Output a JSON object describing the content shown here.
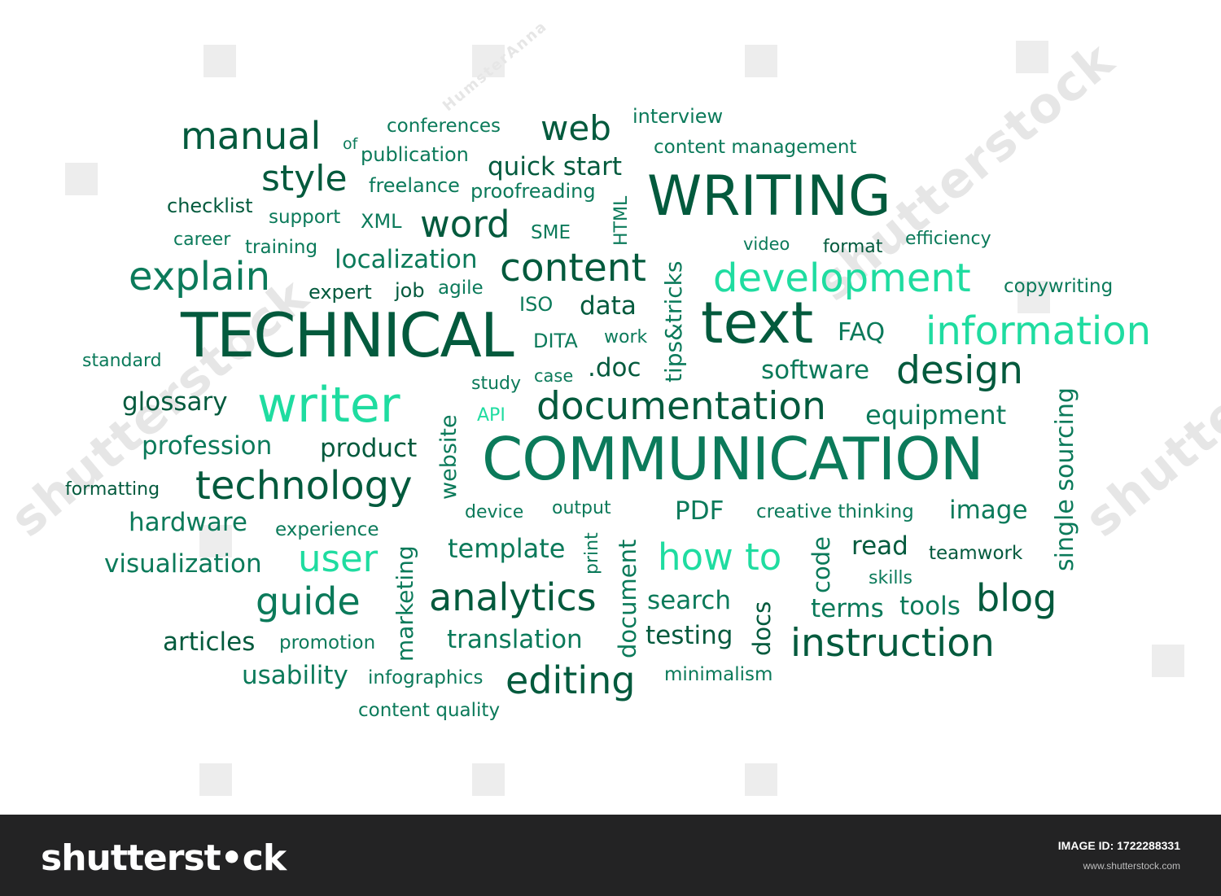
{
  "palette": {
    "dark": "#035a3d",
    "mid": "#0b7a5a",
    "bright": "#1fdca0",
    "medium": "#0a9b6e"
  },
  "words": [
    {
      "text": "manual",
      "color": "dark"
    },
    {
      "text": "of",
      "color": "mid"
    },
    {
      "text": "conferences",
      "color": "mid"
    },
    {
      "text": "web",
      "color": "dark"
    },
    {
      "text": "interview",
      "color": "mid"
    },
    {
      "text": "publication",
      "color": "mid"
    },
    {
      "text": "content management",
      "color": "mid"
    },
    {
      "text": "style",
      "color": "dark"
    },
    {
      "text": "freelance",
      "color": "mid"
    },
    {
      "text": "quick start",
      "color": "dark"
    },
    {
      "text": "WRITING",
      "color": "dark"
    },
    {
      "text": "proofreading",
      "color": "mid"
    },
    {
      "text": "checklist",
      "color": "dark"
    },
    {
      "text": "support",
      "color": "mid"
    },
    {
      "text": "XML",
      "color": "mid"
    },
    {
      "text": "word",
      "color": "dark"
    },
    {
      "text": "SME",
      "color": "mid"
    },
    {
      "text": "HTML",
      "color": "mid"
    },
    {
      "text": "career",
      "color": "mid"
    },
    {
      "text": "training",
      "color": "mid"
    },
    {
      "text": "video",
      "color": "mid"
    },
    {
      "text": "format",
      "color": "dark"
    },
    {
      "text": "efficiency",
      "color": "mid"
    },
    {
      "text": "localization",
      "color": "mid"
    },
    {
      "text": "tips&tricks",
      "color": "mid"
    },
    {
      "text": "explain",
      "color": "mid"
    },
    {
      "text": "content",
      "color": "dark"
    },
    {
      "text": "development",
      "color": "bright"
    },
    {
      "text": "copywriting",
      "color": "mid"
    },
    {
      "text": "expert",
      "color": "dark"
    },
    {
      "text": "job",
      "color": "dark"
    },
    {
      "text": "agile",
      "color": "mid"
    },
    {
      "text": "ISO",
      "color": "mid"
    },
    {
      "text": "data",
      "color": "dark"
    },
    {
      "text": "TECHNICAL",
      "color": "dark"
    },
    {
      "text": "text",
      "color": "dark"
    },
    {
      "text": "FAQ",
      "color": "mid"
    },
    {
      "text": "information",
      "color": "bright"
    },
    {
      "text": "DITA",
      "color": "mid"
    },
    {
      "text": "work",
      "color": "mid"
    },
    {
      "text": "standard",
      "color": "mid"
    },
    {
      "text": ".doc",
      "color": "dark"
    },
    {
      "text": "software",
      "color": "mid"
    },
    {
      "text": "design",
      "color": "dark"
    },
    {
      "text": "study",
      "color": "mid"
    },
    {
      "text": "case",
      "color": "mid"
    },
    {
      "text": "single sourcing",
      "color": "mid"
    },
    {
      "text": "glossary",
      "color": "dark"
    },
    {
      "text": "writer",
      "color": "bright"
    },
    {
      "text": "website",
      "color": "mid"
    },
    {
      "text": "API",
      "color": "bright"
    },
    {
      "text": "documentation",
      "color": "dark"
    },
    {
      "text": "equipment",
      "color": "mid"
    },
    {
      "text": "profession",
      "color": "mid"
    },
    {
      "text": "product",
      "color": "dark"
    },
    {
      "text": "COMMUNICATION",
      "color": "mid"
    },
    {
      "text": "formatting",
      "color": "dark"
    },
    {
      "text": "technology",
      "color": "dark"
    },
    {
      "text": "device",
      "color": "mid"
    },
    {
      "text": "output",
      "color": "mid"
    },
    {
      "text": "PDF",
      "color": "mid"
    },
    {
      "text": "creative thinking",
      "color": "mid"
    },
    {
      "text": "image",
      "color": "mid"
    },
    {
      "text": "hardware",
      "color": "mid"
    },
    {
      "text": "experience",
      "color": "mid"
    },
    {
      "text": "marketing",
      "color": "mid"
    },
    {
      "text": "print",
      "color": "mid"
    },
    {
      "text": "document",
      "color": "mid"
    },
    {
      "text": "code",
      "color": "mid"
    },
    {
      "text": "read",
      "color": "dark"
    },
    {
      "text": "teamwork",
      "color": "dark"
    },
    {
      "text": "visualization",
      "color": "mid"
    },
    {
      "text": "user",
      "color": "bright"
    },
    {
      "text": "template",
      "color": "mid"
    },
    {
      "text": "how to",
      "color": "bright"
    },
    {
      "text": "skills",
      "color": "mid"
    },
    {
      "text": "guide",
      "color": "mid"
    },
    {
      "text": "analytics",
      "color": "dark"
    },
    {
      "text": "search",
      "color": "mid"
    },
    {
      "text": "docs",
      "color": "dark"
    },
    {
      "text": "terms",
      "color": "mid"
    },
    {
      "text": "tools",
      "color": "mid"
    },
    {
      "text": "blog",
      "color": "dark"
    },
    {
      "text": "articles",
      "color": "dark"
    },
    {
      "text": "promotion",
      "color": "mid"
    },
    {
      "text": "translation",
      "color": "mid"
    },
    {
      "text": "testing",
      "color": "dark"
    },
    {
      "text": "instruction",
      "color": "dark"
    },
    {
      "text": "usability",
      "color": "mid"
    },
    {
      "text": "infographics",
      "color": "mid"
    },
    {
      "text": "editing",
      "color": "dark"
    },
    {
      "text": "minimalism",
      "color": "mid"
    },
    {
      "text": "content quality",
      "color": "mid"
    }
  ],
  "watermark": {
    "contributor": "HumsterAnna",
    "brand": "shutterstock"
  },
  "footer": {
    "logo": "shutterst•ck",
    "image_id": "IMAGE ID: 1722288331",
    "site": "www.shutterstock.com"
  }
}
